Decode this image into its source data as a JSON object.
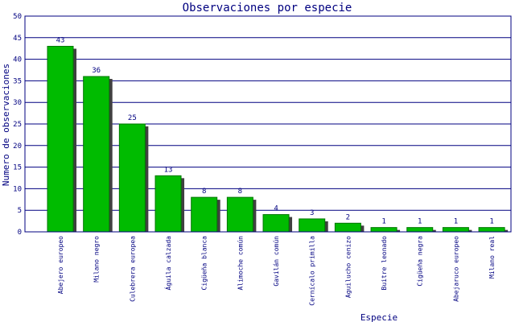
{
  "chart_data": {
    "type": "bar",
    "title": "Observaciones por especie",
    "xlabel": "Especie",
    "ylabel": "Numero de observaciones",
    "ylim": [
      0,
      50
    ],
    "yticks": [
      0,
      5,
      10,
      15,
      20,
      25,
      30,
      35,
      40,
      45,
      50
    ],
    "grid": true,
    "categories": [
      "Abejero europeo",
      "Milano negro",
      "Culebrera europea",
      "Águila calzada",
      "Cigüeña blanca",
      "Alimoche común",
      "Gavilán común",
      "Cernícalo primilla",
      "Aguilucho cenizo",
      "Buitre leonado",
      "Cigüeña negra",
      "Abejaruco europeo",
      "Milano real"
    ],
    "values": [
      43,
      36,
      25,
      13,
      8,
      8,
      4,
      3,
      2,
      1,
      1,
      1,
      1
    ],
    "colors": {
      "bar": "#00bb00",
      "bar_stroke": "#007700",
      "shadow": "#404040",
      "grid": "#000080",
      "text": "#000080"
    }
  }
}
